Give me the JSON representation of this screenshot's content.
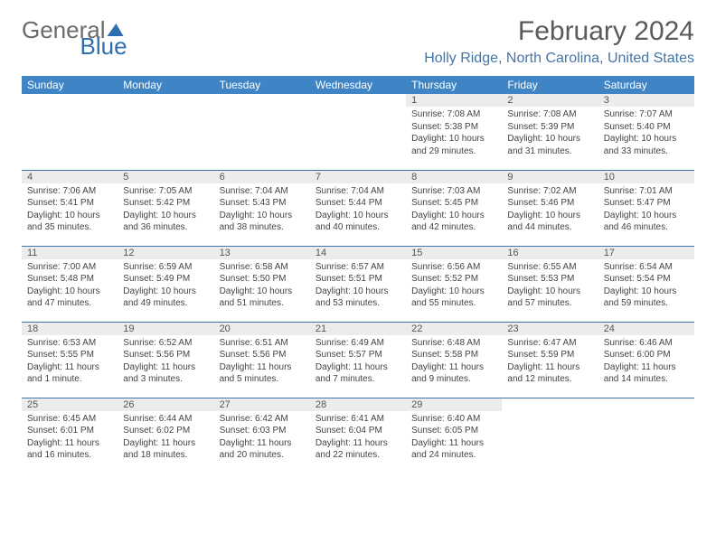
{
  "brand": {
    "word1": "General",
    "word2": "Blue"
  },
  "title": {
    "month": "February 2024",
    "location": "Holly Ridge, North Carolina, United States"
  },
  "colors": {
    "header_bg": "#3f85c6",
    "header_text": "#ffffff",
    "accent": "#4474a8",
    "daynum_bg": "#ececec",
    "text": "#444444",
    "title_text": "#5a5a5a"
  },
  "weekdays": [
    "Sunday",
    "Monday",
    "Tuesday",
    "Wednesday",
    "Thursday",
    "Friday",
    "Saturday"
  ],
  "structure": {
    "type": "calendar",
    "rows": 5,
    "cols": 7,
    "first_weekday_index": 4,
    "days_in_month": 29
  },
  "days": [
    {
      "n": 1,
      "sunrise": "7:08 AM",
      "sunset": "5:38 PM",
      "daylight": "10 hours and 29 minutes."
    },
    {
      "n": 2,
      "sunrise": "7:08 AM",
      "sunset": "5:39 PM",
      "daylight": "10 hours and 31 minutes."
    },
    {
      "n": 3,
      "sunrise": "7:07 AM",
      "sunset": "5:40 PM",
      "daylight": "10 hours and 33 minutes."
    },
    {
      "n": 4,
      "sunrise": "7:06 AM",
      "sunset": "5:41 PM",
      "daylight": "10 hours and 35 minutes."
    },
    {
      "n": 5,
      "sunrise": "7:05 AM",
      "sunset": "5:42 PM",
      "daylight": "10 hours and 36 minutes."
    },
    {
      "n": 6,
      "sunrise": "7:04 AM",
      "sunset": "5:43 PM",
      "daylight": "10 hours and 38 minutes."
    },
    {
      "n": 7,
      "sunrise": "7:04 AM",
      "sunset": "5:44 PM",
      "daylight": "10 hours and 40 minutes."
    },
    {
      "n": 8,
      "sunrise": "7:03 AM",
      "sunset": "5:45 PM",
      "daylight": "10 hours and 42 minutes."
    },
    {
      "n": 9,
      "sunrise": "7:02 AM",
      "sunset": "5:46 PM",
      "daylight": "10 hours and 44 minutes."
    },
    {
      "n": 10,
      "sunrise": "7:01 AM",
      "sunset": "5:47 PM",
      "daylight": "10 hours and 46 minutes."
    },
    {
      "n": 11,
      "sunrise": "7:00 AM",
      "sunset": "5:48 PM",
      "daylight": "10 hours and 47 minutes."
    },
    {
      "n": 12,
      "sunrise": "6:59 AM",
      "sunset": "5:49 PM",
      "daylight": "10 hours and 49 minutes."
    },
    {
      "n": 13,
      "sunrise": "6:58 AM",
      "sunset": "5:50 PM",
      "daylight": "10 hours and 51 minutes."
    },
    {
      "n": 14,
      "sunrise": "6:57 AM",
      "sunset": "5:51 PM",
      "daylight": "10 hours and 53 minutes."
    },
    {
      "n": 15,
      "sunrise": "6:56 AM",
      "sunset": "5:52 PM",
      "daylight": "10 hours and 55 minutes."
    },
    {
      "n": 16,
      "sunrise": "6:55 AM",
      "sunset": "5:53 PM",
      "daylight": "10 hours and 57 minutes."
    },
    {
      "n": 17,
      "sunrise": "6:54 AM",
      "sunset": "5:54 PM",
      "daylight": "10 hours and 59 minutes."
    },
    {
      "n": 18,
      "sunrise": "6:53 AM",
      "sunset": "5:55 PM",
      "daylight": "11 hours and 1 minute."
    },
    {
      "n": 19,
      "sunrise": "6:52 AM",
      "sunset": "5:56 PM",
      "daylight": "11 hours and 3 minutes."
    },
    {
      "n": 20,
      "sunrise": "6:51 AM",
      "sunset": "5:56 PM",
      "daylight": "11 hours and 5 minutes."
    },
    {
      "n": 21,
      "sunrise": "6:49 AM",
      "sunset": "5:57 PM",
      "daylight": "11 hours and 7 minutes."
    },
    {
      "n": 22,
      "sunrise": "6:48 AM",
      "sunset": "5:58 PM",
      "daylight": "11 hours and 9 minutes."
    },
    {
      "n": 23,
      "sunrise": "6:47 AM",
      "sunset": "5:59 PM",
      "daylight": "11 hours and 12 minutes."
    },
    {
      "n": 24,
      "sunrise": "6:46 AM",
      "sunset": "6:00 PM",
      "daylight": "11 hours and 14 minutes."
    },
    {
      "n": 25,
      "sunrise": "6:45 AM",
      "sunset": "6:01 PM",
      "daylight": "11 hours and 16 minutes."
    },
    {
      "n": 26,
      "sunrise": "6:44 AM",
      "sunset": "6:02 PM",
      "daylight": "11 hours and 18 minutes."
    },
    {
      "n": 27,
      "sunrise": "6:42 AM",
      "sunset": "6:03 PM",
      "daylight": "11 hours and 20 minutes."
    },
    {
      "n": 28,
      "sunrise": "6:41 AM",
      "sunset": "6:04 PM",
      "daylight": "11 hours and 22 minutes."
    },
    {
      "n": 29,
      "sunrise": "6:40 AM",
      "sunset": "6:05 PM",
      "daylight": "11 hours and 24 minutes."
    }
  ],
  "labels": {
    "sunrise": "Sunrise:",
    "sunset": "Sunset:",
    "daylight": "Daylight:"
  }
}
